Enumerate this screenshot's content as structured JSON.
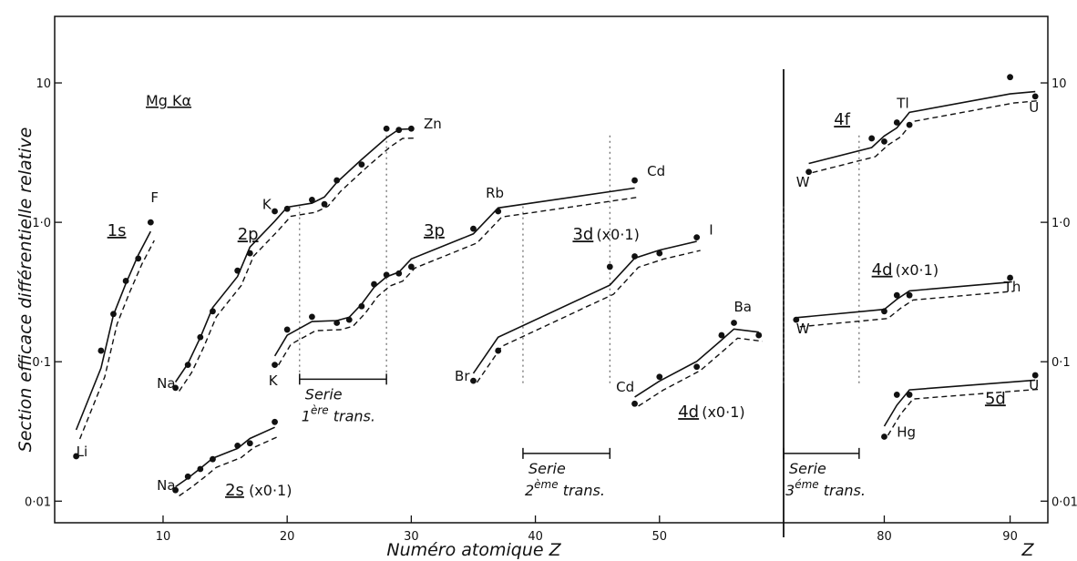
{
  "chart_data": {
    "type": "scatter",
    "title": "",
    "ylabel": "Section efficace différentielle relative",
    "xlabel": "Numéro atomique Z",
    "xlabel_right": "Z",
    "source_label": "Mg Kα",
    "y_scale": "log",
    "ylim": [
      0.007,
      30
    ],
    "panels": [
      {
        "name": "left",
        "xlim": [
          2,
          60
        ],
        "xticks": [
          "10",
          "20",
          "30",
          "40",
          "50"
        ]
      },
      {
        "name": "right",
        "xlim": [
          72,
          93
        ],
        "xticks": [
          "80",
          "90"
        ]
      }
    ],
    "yticks": [
      "0·01",
      "0·1",
      "1·0",
      "10"
    ],
    "series": [
      {
        "name": "1s",
        "panel": "left",
        "dashed_theory": true,
        "x": [
          3,
          5,
          6,
          7,
          8,
          9
        ],
        "y": [
          0.021,
          0.12,
          0.22,
          0.38,
          0.55,
          1.0
        ]
      },
      {
        "name": "2p",
        "panel": "left",
        "dashed_theory": true,
        "x": [
          11,
          12,
          13,
          14,
          16,
          17,
          19,
          20,
          22,
          23,
          24,
          26,
          28,
          29,
          30
        ],
        "y": [
          0.065,
          0.095,
          0.15,
          0.23,
          0.45,
          0.6,
          1.2,
          1.25,
          1.45,
          1.35,
          2.0,
          2.6,
          4.7,
          4.6,
          4.7
        ]
      },
      {
        "name": "2s (x0·1)",
        "panel": "left",
        "dashed_theory": true,
        "x": [
          11,
          12,
          13,
          14,
          16,
          17,
          19
        ],
        "y": [
          0.012,
          0.015,
          0.017,
          0.02,
          0.025,
          0.026,
          0.037
        ]
      },
      {
        "name": "3p",
        "panel": "left",
        "dashed_theory": true,
        "x": [
          19,
          20,
          22,
          24,
          25,
          26,
          27,
          28,
          29,
          30,
          35,
          37,
          48
        ],
        "y": [
          0.095,
          0.17,
          0.21,
          0.19,
          0.2,
          0.25,
          0.36,
          0.42,
          0.43,
          0.48,
          0.9,
          1.2,
          2.0
        ]
      },
      {
        "name": "3d (x0·1)",
        "panel": "left",
        "dashed_theory": true,
        "x": [
          35,
          37,
          46,
          48,
          50,
          53
        ],
        "y": [
          0.073,
          0.12,
          0.48,
          0.57,
          0.6,
          0.78
        ]
      },
      {
        "name": "4d (x0·1)",
        "panel": "left",
        "dashed_theory": true,
        "x": [
          48,
          50,
          53,
          55,
          56,
          58
        ],
        "y": [
          0.05,
          0.078,
          0.092,
          0.155,
          0.19,
          0.155
        ]
      },
      {
        "name": "4f",
        "panel": "right",
        "dashed_theory": true,
        "x": [
          74,
          79,
          80,
          81,
          82,
          90,
          92
        ],
        "y": [
          2.3,
          4.0,
          3.8,
          5.2,
          5.0,
          11.0,
          8.0
        ]
      },
      {
        "name": "4d (x0·1)",
        "panel": "right",
        "dashed_theory": true,
        "x": [
          73,
          80,
          81,
          82,
          90
        ],
        "y": [
          0.2,
          0.23,
          0.3,
          0.3,
          0.4
        ]
      },
      {
        "name": "5d",
        "panel": "right",
        "dashed_theory": true,
        "x": [
          80,
          81,
          82,
          92
        ],
        "y": [
          0.029,
          0.058,
          0.058,
          0.08
        ]
      }
    ],
    "element_labels": [
      {
        "text": "Li",
        "x": 3,
        "y": 0.021
      },
      {
        "text": "F",
        "x": 9,
        "y": 1.4
      },
      {
        "text": "Na",
        "x": 9.5,
        "y": 0.065
      },
      {
        "text": "K",
        "x": 18,
        "y": 1.25
      },
      {
        "text": "Zn",
        "x": 31,
        "y": 4.7
      },
      {
        "text": "Na",
        "x": 9.5,
        "y": 0.012
      },
      {
        "text": "K",
        "x": 18.5,
        "y": 0.068
      },
      {
        "text": "Rb",
        "x": 36,
        "y": 1.5
      },
      {
        "text": "Cd",
        "x": 49,
        "y": 2.15
      },
      {
        "text": "Br",
        "x": 33.5,
        "y": 0.073
      },
      {
        "text": "I",
        "x": 54,
        "y": 0.82
      },
      {
        "text": "Cd",
        "x": 46.5,
        "y": 0.061
      },
      {
        "text": "Ba",
        "x": 56,
        "y": 0.23
      },
      {
        "text": "W",
        "x": 73,
        "y": 1.8
      },
      {
        "text": "Tl",
        "x": 81,
        "y": 6.6
      },
      {
        "text": "U",
        "x": 91.5,
        "y": 6.2
      },
      {
        "text": "W",
        "x": 73,
        "y": 0.16
      },
      {
        "text": "Th",
        "x": 89.5,
        "y": 0.32
      },
      {
        "text": "Hg",
        "x": 81,
        "y": 0.029
      },
      {
        "text": "U",
        "x": 91.5,
        "y": 0.063
      }
    ],
    "series_labels": [
      {
        "text": "1s",
        "x": 5.5,
        "y": 0.8
      },
      {
        "text": "2p",
        "x": 16,
        "y": 0.75
      },
      {
        "text": "2s",
        "x": 15,
        "y": 0.011,
        "suffix": "(x0·1)"
      },
      {
        "text": "3p",
        "x": 31,
        "y": 0.8
      },
      {
        "text": "3d",
        "x": 43,
        "y": 0.75,
        "suffix": "(x0·1)"
      },
      {
        "text": "4d",
        "x": 51.5,
        "y": 0.04,
        "suffix": "(x0·1)"
      },
      {
        "text": "4f",
        "x": 76,
        "y": 5.0
      },
      {
        "text": "4d",
        "x": 79,
        "y": 0.42,
        "suffix": "(x0·1)"
      },
      {
        "text": "5d",
        "x": 88,
        "y": 0.05
      }
    ],
    "transition_series": [
      {
        "line1": "Serie",
        "ord": "1",
        "sup": "ère",
        "word": "trans.",
        "x_from": 21,
        "x_to": 28
      },
      {
        "line1": "Serie",
        "ord": "2",
        "sup": "ème",
        "word": "trans.",
        "x_from": 39,
        "x_to": 46
      },
      {
        "line1": "Serie",
        "ord": "3",
        "sup": "éme",
        "word": "trans.",
        "x_from": 72,
        "x_to": 78
      }
    ]
  }
}
